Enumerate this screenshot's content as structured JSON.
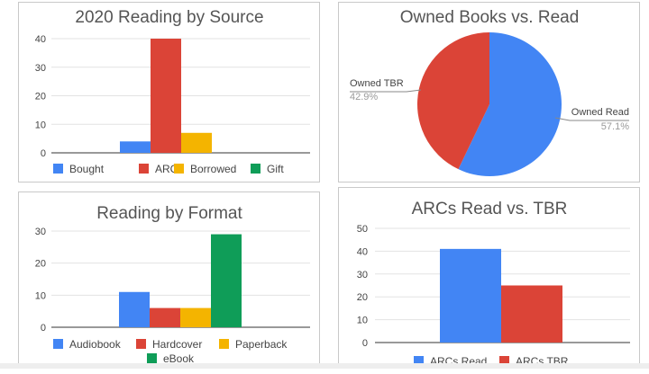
{
  "charts": {
    "source": {
      "title": "2020 Reading by Source",
      "yticks": [
        "0",
        "10",
        "20",
        "30",
        "40"
      ],
      "ylim": [
        0,
        40
      ],
      "legend": [
        {
          "label": "Bought",
          "color": "#4285f4"
        },
        {
          "label": "ARC",
          "color": "#db4437"
        },
        {
          "label": "Borrowed",
          "color": "#f4b400"
        },
        {
          "label": "Gift",
          "color": "#0f9d58"
        }
      ]
    },
    "format": {
      "title": "Reading by Format",
      "yticks": [
        "0",
        "10",
        "20",
        "30"
      ],
      "ylim": [
        0,
        30
      ],
      "legend": [
        {
          "label": "Audiobook",
          "color": "#4285f4"
        },
        {
          "label": "Hardcover",
          "color": "#db4437"
        },
        {
          "label": "Paperback",
          "color": "#f4b400"
        },
        {
          "label": "eBook",
          "color": "#0f9d58"
        }
      ]
    },
    "owned": {
      "title": "Owned Books vs. Read",
      "slices": [
        {
          "label": "Owned Read",
          "pct": "57.1%",
          "color": "#4285f4"
        },
        {
          "label": "Owned TBR",
          "pct": "42.9%",
          "color": "#db4437"
        }
      ]
    },
    "arcs": {
      "title": "ARCs Read vs. TBR",
      "yticks": [
        "0",
        "10",
        "20",
        "30",
        "40",
        "50"
      ],
      "ylim": [
        0,
        50
      ],
      "legend": [
        {
          "label": "ARCs Read",
          "color": "#4285f4"
        },
        {
          "label": "ARCs TBR",
          "color": "#db4437"
        }
      ]
    }
  },
  "chart_data": [
    {
      "type": "bar",
      "title": "2020 Reading by Source",
      "series": [
        {
          "name": "Bought",
          "values": [
            4
          ]
        },
        {
          "name": "ARC",
          "values": [
            40
          ]
        },
        {
          "name": "Borrowed",
          "values": [
            7
          ]
        },
        {
          "name": "Gift",
          "values": [
            0
          ]
        }
      ],
      "ylim": [
        0,
        40
      ],
      "grid": true,
      "legend": "bottom"
    },
    {
      "type": "bar",
      "title": "Reading by Format",
      "series": [
        {
          "name": "Audiobook",
          "values": [
            11
          ]
        },
        {
          "name": "Hardcover",
          "values": [
            6
          ]
        },
        {
          "name": "Paperback",
          "values": [
            6
          ]
        },
        {
          "name": "eBook",
          "values": [
            29
          ]
        }
      ],
      "ylim": [
        0,
        30
      ],
      "grid": true,
      "legend": "bottom"
    },
    {
      "type": "pie",
      "title": "Owned Books vs. Read",
      "labels": [
        "Owned Read",
        "Owned TBR"
      ],
      "values": [
        57.1,
        42.9
      ]
    },
    {
      "type": "bar",
      "title": "ARCs Read vs. TBR",
      "series": [
        {
          "name": "ARCs Read",
          "values": [
            41
          ]
        },
        {
          "name": "ARCs TBR",
          "values": [
            25
          ]
        }
      ],
      "ylim": [
        0,
        50
      ],
      "grid": true,
      "legend": "bottom"
    }
  ]
}
